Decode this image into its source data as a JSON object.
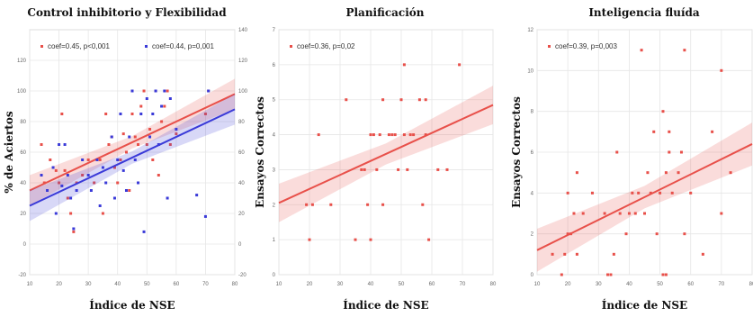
{
  "chart_data": [
    {
      "type": "scatter",
      "title": "Control inhibitorio y Flexibilidad",
      "xlabel": "Índice de NSE",
      "ylabel": "% de Aciertos",
      "xlim": [
        10,
        80
      ],
      "ylim": [
        -20,
        140
      ],
      "y2lim": [
        -20,
        140
      ],
      "xticks": [
        10,
        20,
        30,
        40,
        50,
        60,
        70,
        80
      ],
      "yticks_left": [
        -20,
        0,
        20,
        40,
        60,
        80,
        100,
        120
      ],
      "yticks_right": [
        -20,
        0,
        20,
        40,
        60,
        80,
        100,
        120,
        140
      ],
      "grid": true,
      "legend_position": "top",
      "series": [
        {
          "name": "coef=0.45, p<0,001",
          "color": "#e8504a",
          "fit": [
            [
              10,
              35
            ],
            [
              80,
              98
            ]
          ],
          "points": [
            [
              14,
              65
            ],
            [
              15,
              40
            ],
            [
              17,
              55
            ],
            [
              19,
              48
            ],
            [
              20,
              40
            ],
            [
              21,
              85
            ],
            [
              22,
              48
            ],
            [
              23,
              30
            ],
            [
              24,
              20
            ],
            [
              25,
              8
            ],
            [
              26,
              40
            ],
            [
              28,
              45
            ],
            [
              30,
              55
            ],
            [
              32,
              40
            ],
            [
              34,
              55
            ],
            [
              35,
              20
            ],
            [
              36,
              85
            ],
            [
              37,
              65
            ],
            [
              38,
              70
            ],
            [
              39,
              50
            ],
            [
              40,
              40
            ],
            [
              41,
              55
            ],
            [
              42,
              72
            ],
            [
              43,
              60
            ],
            [
              44,
              35
            ],
            [
              45,
              85
            ],
            [
              46,
              70
            ],
            [
              47,
              65
            ],
            [
              48,
              90
            ],
            [
              49,
              100
            ],
            [
              50,
              65
            ],
            [
              51,
              75
            ],
            [
              52,
              55
            ],
            [
              53,
              100
            ],
            [
              54,
              45
            ],
            [
              55,
              80
            ],
            [
              56,
              90
            ],
            [
              57,
              100
            ],
            [
              58,
              65
            ],
            [
              60,
              72
            ],
            [
              70,
              85
            ],
            [
              71,
              100
            ]
          ]
        },
        {
          "name": "coef=0.44, p=0,001",
          "color": "#3a3ad8",
          "fit": [
            [
              10,
              25
            ],
            [
              80,
              88
            ]
          ],
          "points": [
            [
              14,
              45
            ],
            [
              16,
              35
            ],
            [
              18,
              50
            ],
            [
              19,
              20
            ],
            [
              20,
              65
            ],
            [
              21,
              38
            ],
            [
              22,
              65
            ],
            [
              23,
              45
            ],
            [
              24,
              30
            ],
            [
              25,
              10
            ],
            [
              26,
              35
            ],
            [
              28,
              55
            ],
            [
              30,
              45
            ],
            [
              31,
              35
            ],
            [
              33,
              55
            ],
            [
              34,
              25
            ],
            [
              35,
              50
            ],
            [
              36,
              40
            ],
            [
              38,
              70
            ],
            [
              39,
              30
            ],
            [
              40,
              55
            ],
            [
              41,
              85
            ],
            [
              42,
              48
            ],
            [
              43,
              35
            ],
            [
              44,
              70
            ],
            [
              45,
              100
            ],
            [
              46,
              55
            ],
            [
              47,
              40
            ],
            [
              48,
              85
            ],
            [
              49,
              8
            ],
            [
              50,
              95
            ],
            [
              51,
              70
            ],
            [
              52,
              85
            ],
            [
              53,
              100
            ],
            [
              54,
              65
            ],
            [
              55,
              90
            ],
            [
              56,
              100
            ],
            [
              57,
              30
            ],
            [
              58,
              95
            ],
            [
              60,
              75
            ],
            [
              67,
              32
            ],
            [
              70,
              18
            ],
            [
              71,
              100
            ]
          ]
        }
      ]
    },
    {
      "type": "scatter",
      "title": "Planificación",
      "xlabel": "Índice de NSE",
      "ylabel": "Ensayos Correctos",
      "xlim": [
        10,
        80
      ],
      "ylim": [
        0,
        7
      ],
      "xticks": [
        10,
        20,
        30,
        40,
        50,
        60,
        70,
        80
      ],
      "yticks": [
        0,
        1,
        2,
        3,
        4,
        5,
        6,
        7
      ],
      "grid": true,
      "legend_position": "top-left",
      "series": [
        {
          "name": "coef=0.36, p=0,02",
          "color": "#e8504a",
          "fit": [
            [
              10,
              2.05
            ],
            [
              80,
              4.85
            ]
          ],
          "points": [
            [
              19,
              2
            ],
            [
              20,
              1
            ],
            [
              21,
              2
            ],
            [
              23,
              4
            ],
            [
              27,
              2
            ],
            [
              32,
              5
            ],
            [
              35,
              1
            ],
            [
              37,
              3
            ],
            [
              38,
              3
            ],
            [
              39,
              2
            ],
            [
              40,
              1
            ],
            [
              40,
              4
            ],
            [
              41,
              4
            ],
            [
              42,
              3
            ],
            [
              43,
              4
            ],
            [
              44,
              5
            ],
            [
              44,
              2
            ],
            [
              46,
              4
            ],
            [
              47,
              4
            ],
            [
              48,
              4
            ],
            [
              49,
              3
            ],
            [
              50,
              5
            ],
            [
              51,
              6
            ],
            [
              51,
              4
            ],
            [
              52,
              3
            ],
            [
              53,
              4
            ],
            [
              54,
              4
            ],
            [
              56,
              5
            ],
            [
              57,
              2
            ],
            [
              58,
              5
            ],
            [
              58,
              4
            ],
            [
              59,
              1
            ],
            [
              62,
              3
            ],
            [
              65,
              3
            ],
            [
              69,
              6
            ]
          ]
        }
      ]
    },
    {
      "type": "scatter",
      "title": "Inteligencia fluída",
      "xlabel": "Índice de NSE",
      "ylabel": "Ensayos Correctos",
      "xlim": [
        10,
        80
      ],
      "ylim": [
        0,
        12
      ],
      "xticks": [
        10,
        20,
        30,
        40,
        50,
        60,
        70,
        80
      ],
      "yticks": [
        0,
        2,
        4,
        6,
        8,
        10,
        12
      ],
      "grid": true,
      "legend_position": "top-left",
      "series": [
        {
          "name": "coef=0.39, p=0,003",
          "color": "#e8504a",
          "fit": [
            [
              10,
              1.2
            ],
            [
              80,
              6.4
            ]
          ],
          "points": [
            [
              15,
              1
            ],
            [
              18,
              0
            ],
            [
              19,
              1
            ],
            [
              20,
              2
            ],
            [
              20,
              4
            ],
            [
              21,
              2
            ],
            [
              22,
              3
            ],
            [
              23,
              1
            ],
            [
              23,
              5
            ],
            [
              25,
              3
            ],
            [
              28,
              4
            ],
            [
              32,
              3
            ],
            [
              33,
              0
            ],
            [
              34,
              0
            ],
            [
              35,
              1
            ],
            [
              36,
              6
            ],
            [
              37,
              3
            ],
            [
              39,
              2
            ],
            [
              40,
              3
            ],
            [
              41,
              4
            ],
            [
              42,
              3
            ],
            [
              43,
              4
            ],
            [
              44,
              11
            ],
            [
              45,
              3
            ],
            [
              46,
              5
            ],
            [
              47,
              4
            ],
            [
              48,
              7
            ],
            [
              49,
              2
            ],
            [
              50,
              4
            ],
            [
              51,
              8
            ],
            [
              51,
              0
            ],
            [
              52,
              5
            ],
            [
              52,
              0
            ],
            [
              53,
              7
            ],
            [
              53,
              6
            ],
            [
              54,
              4
            ],
            [
              56,
              5
            ],
            [
              57,
              6
            ],
            [
              58,
              2
            ],
            [
              58,
              11
            ],
            [
              60,
              4
            ],
            [
              64,
              1
            ],
            [
              67,
              7
            ],
            [
              70,
              10
            ],
            [
              70,
              3
            ],
            [
              73,
              5
            ]
          ]
        }
      ]
    }
  ]
}
